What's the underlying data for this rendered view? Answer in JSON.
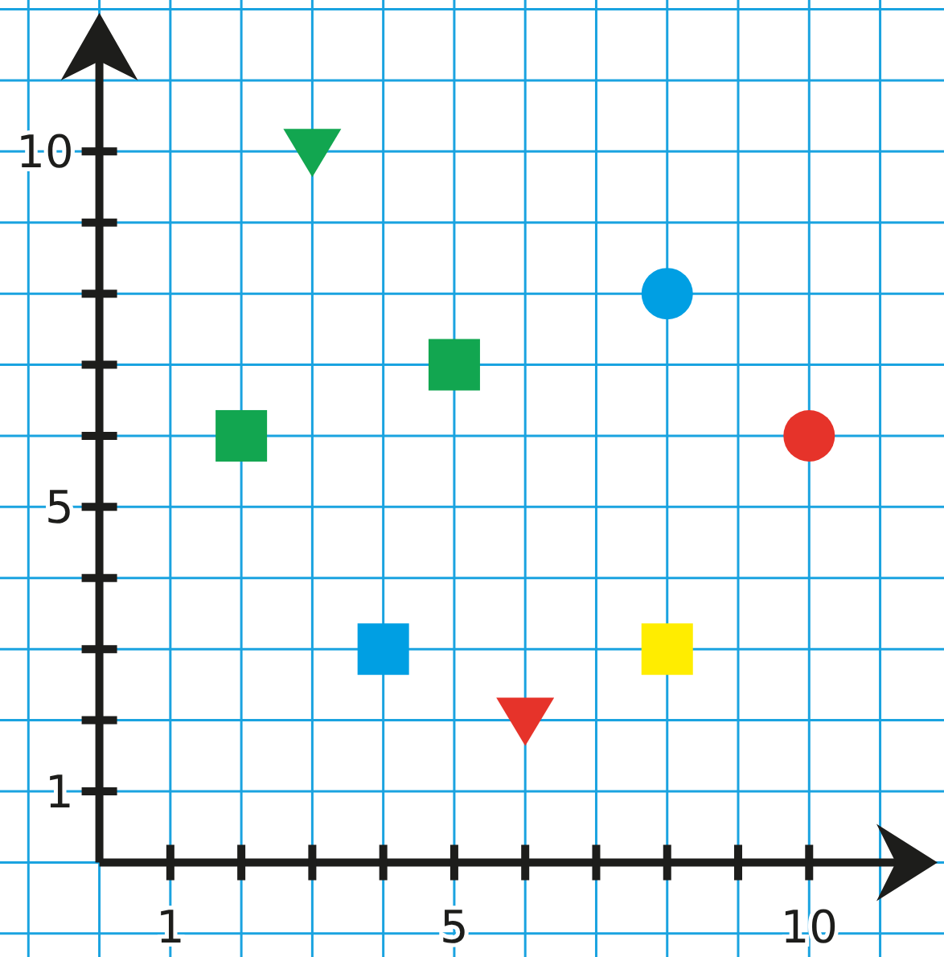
{
  "chart_data": {
    "type": "scatter",
    "xlim": [
      -1.4,
      11.9
    ],
    "ylim": [
      -1.33,
      12.13
    ],
    "xticks": [
      1,
      {
        "value": 2,
        "label": null
      },
      {
        "value": 3,
        "label": null
      },
      {
        "value": 4,
        "label": null
      },
      5,
      {
        "value": 6,
        "label": null
      },
      {
        "value": 7,
        "label": null
      },
      {
        "value": 8,
        "label": null
      },
      {
        "value": 9,
        "label": null
      },
      10
    ],
    "yticks": [
      1,
      {
        "value": 2,
        "label": null
      },
      {
        "value": 3,
        "label": null
      },
      {
        "value": 4,
        "label": null
      },
      5,
      {
        "value": 6,
        "label": null
      },
      {
        "value": 7,
        "label": null
      },
      {
        "value": 8,
        "label": null
      },
      {
        "value": 9,
        "label": null
      },
      10
    ],
    "grid": true,
    "series": [
      {
        "color": "#12a650",
        "marker": "triangle",
        "x": [
          3
        ],
        "values": [
          10
        ]
      },
      {
        "color": "#12a650",
        "marker": "square",
        "x": [
          2
        ],
        "values": [
          6
        ]
      },
      {
        "color": "#12a650",
        "marker": "square",
        "x": [
          5
        ],
        "values": [
          7
        ]
      },
      {
        "color": "#009fe3",
        "marker": "circle",
        "x": [
          8
        ],
        "values": [
          8
        ]
      },
      {
        "color": "#e6332a",
        "marker": "circle",
        "x": [
          10
        ],
        "values": [
          6
        ]
      },
      {
        "color": "#009fe3",
        "marker": "square",
        "x": [
          4
        ],
        "values": [
          3
        ]
      },
      {
        "color": "#ffed00",
        "marker": "square",
        "x": [
          8
        ],
        "values": [
          3
        ]
      },
      {
        "color": "#e6332a",
        "marker": "triangle",
        "x": [
          6
        ],
        "values": [
          2
        ]
      }
    ]
  }
}
